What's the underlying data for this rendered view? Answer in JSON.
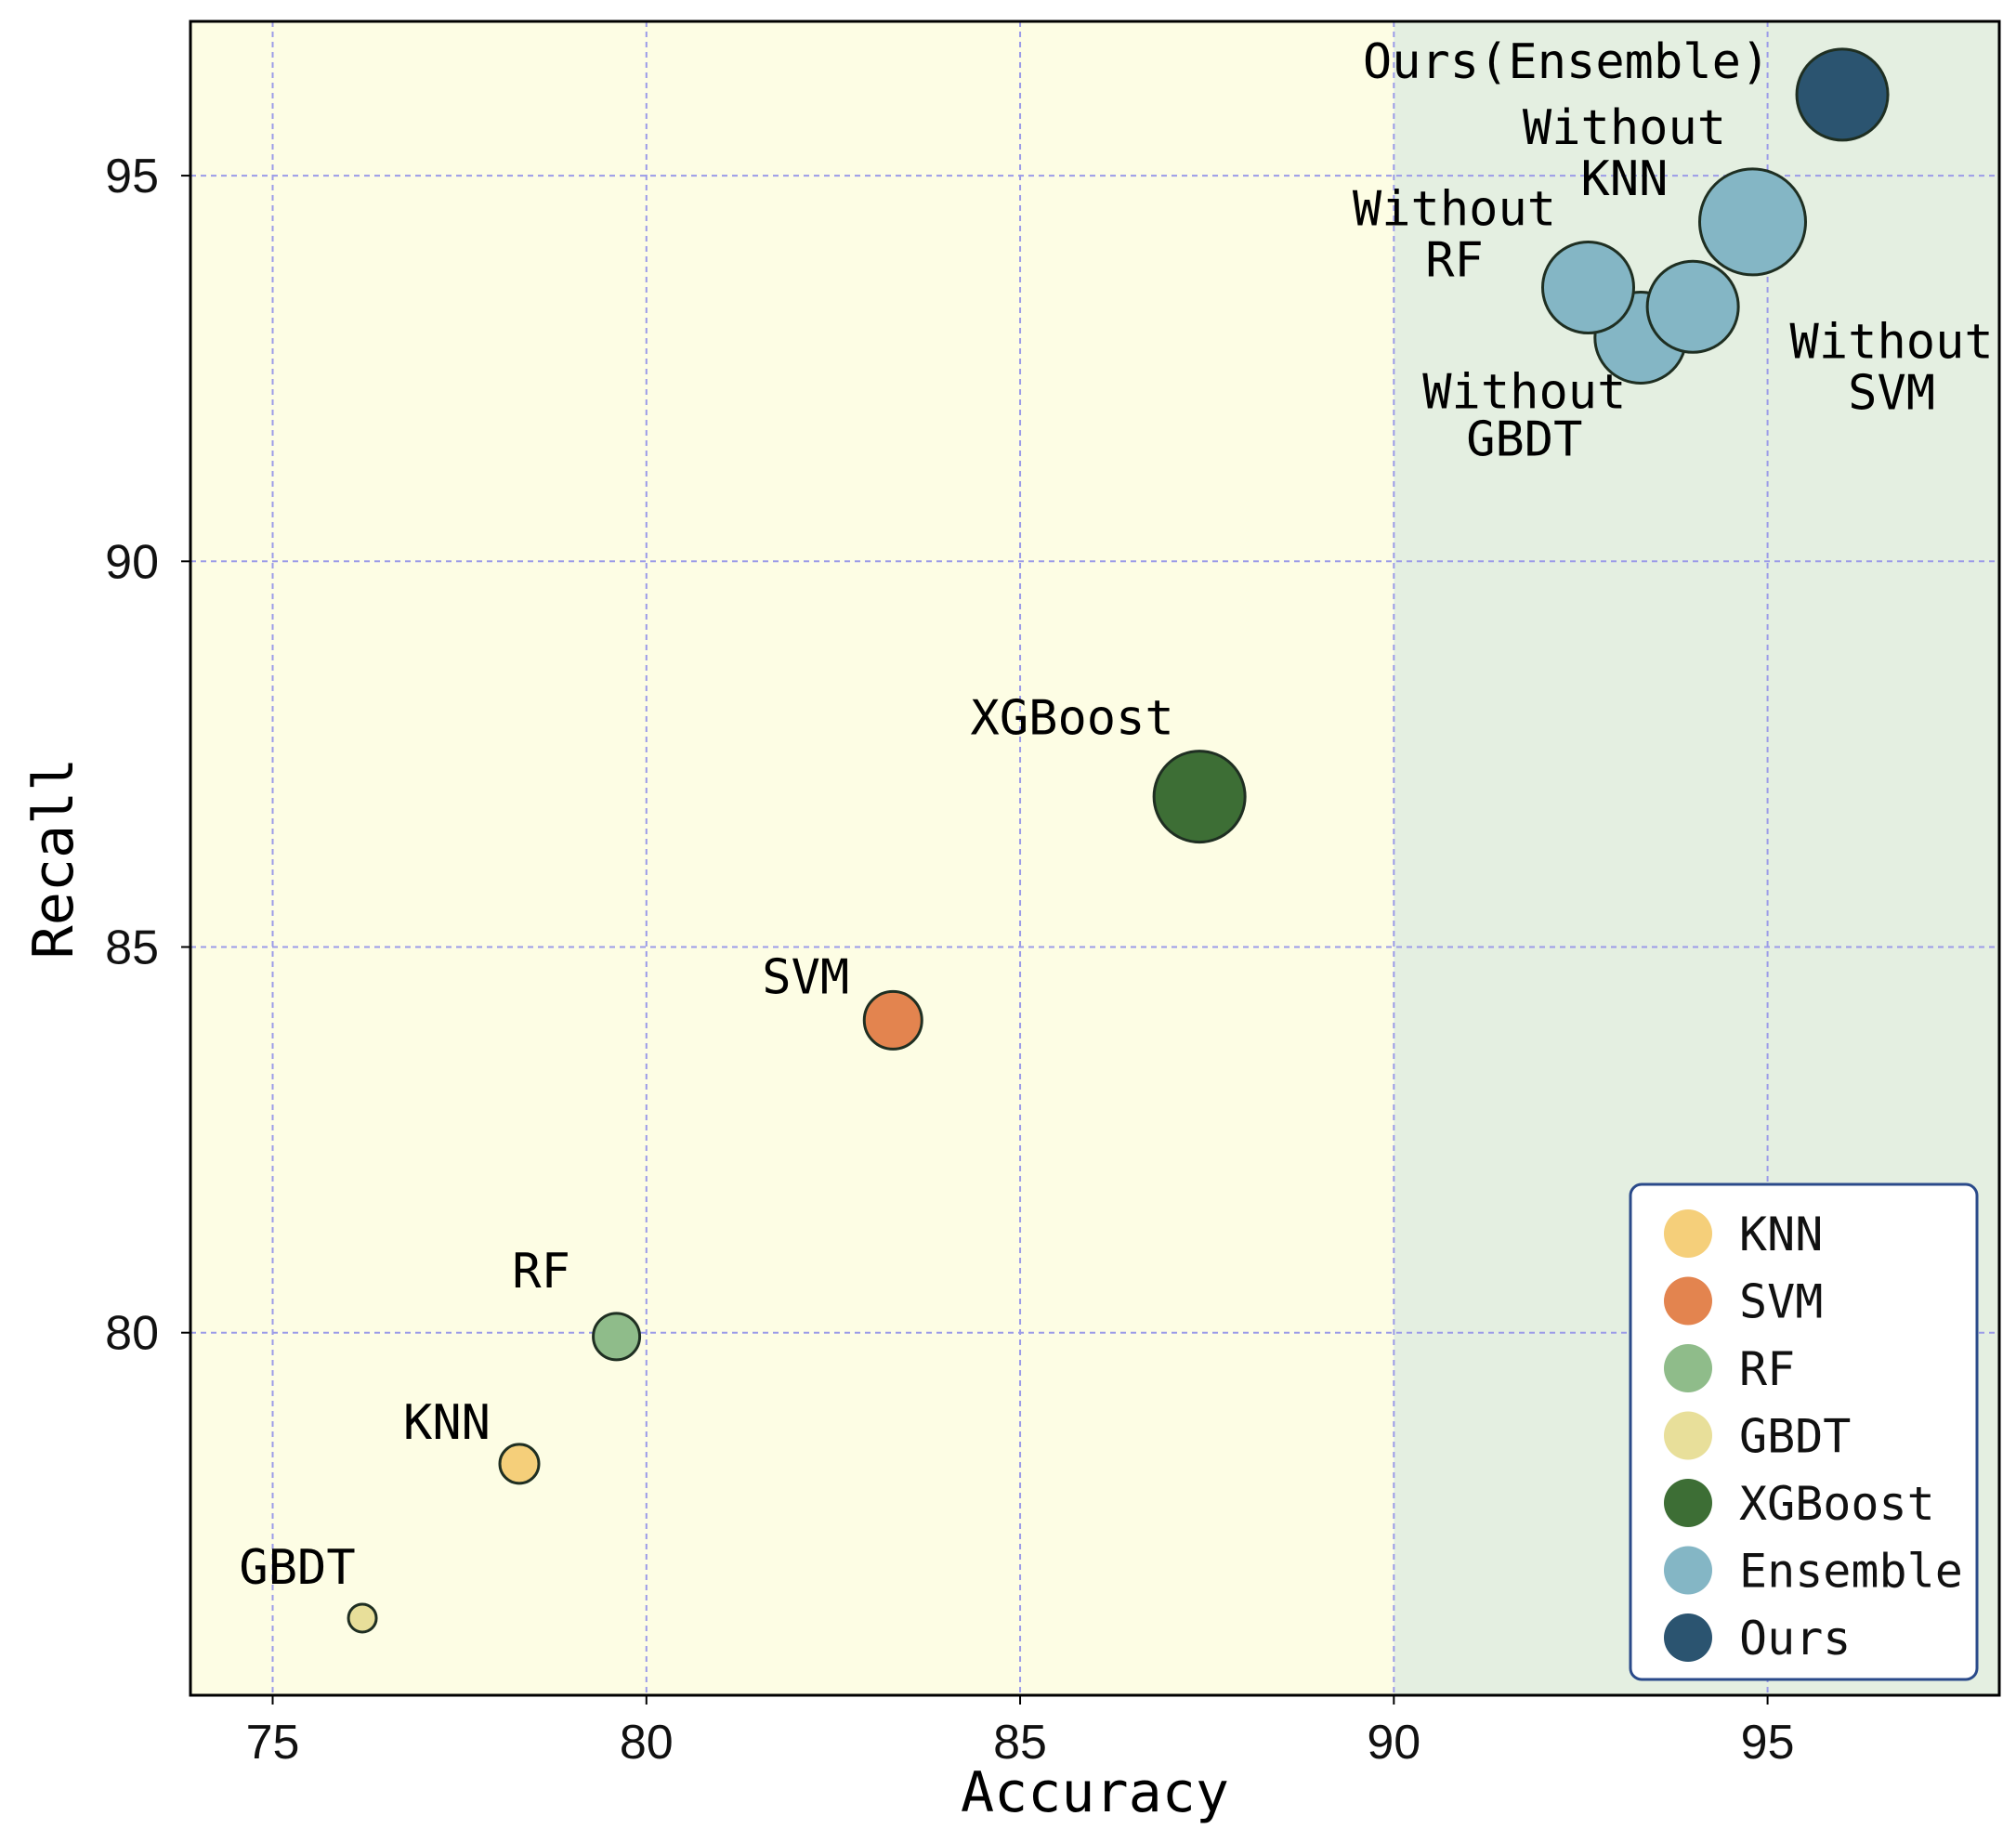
{
  "chart_data": {
    "type": "scatter",
    "xlabel": "Accuracy",
    "ylabel": "Recall",
    "xlim": [
      73.9,
      98.1
    ],
    "ylim": [
      75.3,
      97.0
    ],
    "xticks": [
      75,
      80,
      85,
      90,
      95
    ],
    "yticks": [
      80,
      85,
      90,
      95
    ],
    "grid": true,
    "shaded_regions": [
      {
        "x_range": [
          73.9,
          90
        ],
        "color": "#fdfde4"
      },
      {
        "x_range": [
          90,
          98.1
        ],
        "color": "#e4efe1"
      }
    ],
    "points": [
      {
        "name": "GBDT",
        "x": 76.2,
        "y": 76.3,
        "size": 30,
        "color": "#e8df9a",
        "label": "GBDT"
      },
      {
        "name": "KNN",
        "x": 78.3,
        "y": 78.3,
        "size": 42,
        "color": "#f5cf7a",
        "label": "KNN"
      },
      {
        "name": "RF",
        "x": 79.6,
        "y": 79.95,
        "size": 50,
        "color": "#8fbc8a",
        "label": "RF"
      },
      {
        "name": "SVM",
        "x": 83.3,
        "y": 84.05,
        "size": 62,
        "color": "#e3844f",
        "label": "SVM"
      },
      {
        "name": "XGBoost",
        "x": 87.4,
        "y": 86.95,
        "size": 98,
        "color": "#3d6e35",
        "label": "XGBoost"
      },
      {
        "name": "Ensemble",
        "x": 93.3,
        "y": 92.9,
        "size": 98,
        "color": "#84b6c5",
        "label": "Without GBDT"
      },
      {
        "name": "Ensemble",
        "x": 94.0,
        "y": 93.3,
        "size": 98,
        "color": "#84b6c5",
        "label": "Without SVM"
      },
      {
        "name": "Ensemble",
        "x": 92.6,
        "y": 93.55,
        "size": 98,
        "color": "#84b6c5",
        "label": "Without RF"
      },
      {
        "name": "Ensemble",
        "x": 94.8,
        "y": 94.4,
        "size": 114,
        "color": "#84b6c5",
        "label": "Without KNN"
      },
      {
        "name": "Ours",
        "x": 96.0,
        "y": 96.05,
        "size": 98,
        "color": "#2b5470",
        "label": "Ours(Ensemble)"
      }
    ],
    "legend": {
      "position": "bottom-right",
      "entries": [
        {
          "label": "KNN",
          "color": "#f5cf7a"
        },
        {
          "label": "SVM",
          "color": "#e3844f"
        },
        {
          "label": "RF",
          "color": "#8fbc8a"
        },
        {
          "label": "GBDT",
          "color": "#e8df9a"
        },
        {
          "label": "XGBoost",
          "color": "#3d6e35"
        },
        {
          "label": "Ensemble",
          "color": "#84b6c5"
        },
        {
          "label": "Ours",
          "color": "#2b5470"
        }
      ]
    }
  }
}
